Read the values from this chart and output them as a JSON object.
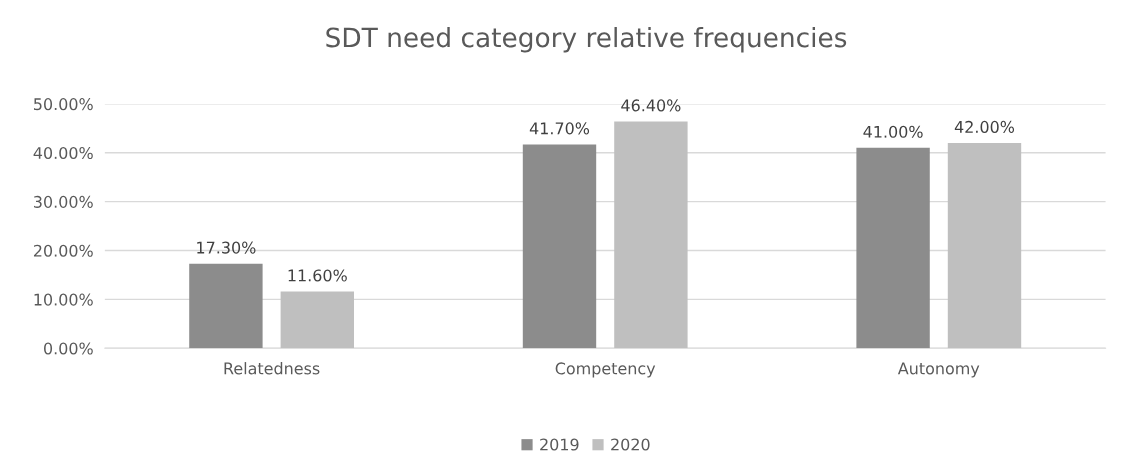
{
  "chart_data": {
    "type": "bar",
    "title": "SDT need category relative frequencies",
    "categories": [
      "Relatedness",
      "Competency",
      "Autonomy"
    ],
    "series": [
      {
        "name": "2019",
        "color": "#8c8c8c",
        "values": [
          17.3,
          41.7,
          41.0
        ],
        "value_labels": [
          "17.30%",
          "41.70%",
          "41.00%"
        ]
      },
      {
        "name": "2020",
        "color": "#bfbfbf",
        "values": [
          11.6,
          46.4,
          42.0
        ],
        "value_labels": [
          "11.60%",
          "46.40%",
          "42.00%"
        ]
      }
    ],
    "ylim": [
      0,
      50
    ],
    "yticks": [
      {
        "value": 0,
        "label": "0.00%"
      },
      {
        "value": 10,
        "label": "10.00%"
      },
      {
        "value": 20,
        "label": "20.00%"
      },
      {
        "value": 30,
        "label": "30.00%"
      },
      {
        "value": 40,
        "label": "40.00%"
      },
      {
        "value": 50,
        "label": "50.00%"
      }
    ],
    "grid": "y",
    "legend": "bottom"
  }
}
